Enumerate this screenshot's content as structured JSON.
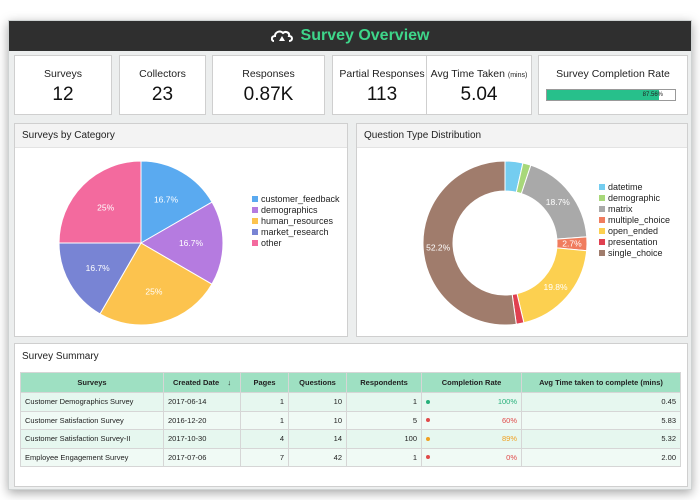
{
  "header": {
    "title": "Survey Overview",
    "icon": "cloud-logo-icon",
    "accent": "#3ed68a"
  },
  "kpis": [
    {
      "label": "Surveys",
      "value": "12"
    },
    {
      "label": "Collectors",
      "value": "23"
    },
    {
      "label": "Responses",
      "value": "0.87K"
    },
    {
      "label": "Partial Responses",
      "value": "113"
    },
    {
      "label": "Avg Time Taken",
      "unit": "(mins)",
      "value": "5.04"
    },
    {
      "label": "Survey Completion Rate",
      "progress_label": "87.56%",
      "progress": 0.8756,
      "color": "#27c08b"
    }
  ],
  "chart_data": [
    {
      "type": "pie",
      "title": "Surveys by Category",
      "categories": [
        "customer_feedback",
        "demographics",
        "human_resources",
        "market_research",
        "other"
      ],
      "values": [
        16.7,
        16.7,
        25,
        16.7,
        25
      ],
      "labels": [
        "16.7%",
        "16.7%",
        "25%",
        "16.7%",
        "25%"
      ],
      "colors": [
        "#5aaaf0",
        "#b57be0",
        "#fcc34e",
        "#7884d4",
        "#f36a9e"
      ],
      "legend": "right"
    },
    {
      "type": "pie",
      "title": "Question Type Distribution",
      "categories": [
        "datetime",
        "demographic",
        "matrix",
        "multiple_choice",
        "open_ended",
        "presentation",
        "single_choice"
      ],
      "values": [
        3.5,
        1.6,
        18.7,
        2.7,
        19.8,
        1.5,
        52.2
      ],
      "labels": [
        "",
        "",
        "18.7%",
        "2.7%",
        "19.8%",
        "",
        "52.2%"
      ],
      "colors": [
        "#74cdf0",
        "#a8d87a",
        "#a9a9a9",
        "#f07c5e",
        "#fcd050",
        "#e04050",
        "#a07c6c"
      ],
      "legend": "right"
    }
  ],
  "summary": {
    "title": "Survey Summary",
    "columns": [
      "Surveys",
      "Created Date",
      "Pages",
      "Questions",
      "Respondents",
      "Completion Rate",
      "Avg Time taken to complete (mins)"
    ],
    "sort_icon": "arrow-down-icon",
    "rows": [
      {
        "survey": "Customer Demographics Survey",
        "created": "2017-06-14",
        "pages": "1",
        "questions": "10",
        "respondents": "1",
        "rate": "100%",
        "rate_color": "#27b07a",
        "avg": "0.45"
      },
      {
        "survey": "Customer Satisfaction Survey",
        "created": "2016-12-20",
        "pages": "1",
        "questions": "10",
        "respondents": "5",
        "rate": "60%",
        "rate_color": "#e04a4a",
        "avg": "5.83"
      },
      {
        "survey": "Customer Satisfaction Survey-II",
        "created": "2017-10-30",
        "pages": "4",
        "questions": "14",
        "respondents": "100",
        "rate": "89%",
        "rate_color": "#f0a020",
        "avg": "5.32"
      },
      {
        "survey": "Employee Engagement Survey",
        "created": "2017-07-06",
        "pages": "7",
        "questions": "42",
        "respondents": "1",
        "rate": "0%",
        "rate_color": "#e04a4a",
        "avg": "2.00"
      }
    ]
  }
}
